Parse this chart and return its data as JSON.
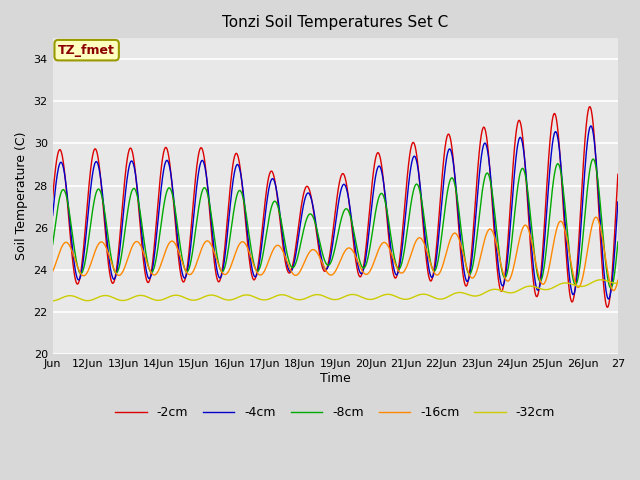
{
  "title": "Tonzi Soil Temperatures Set C",
  "xlabel": "Time",
  "ylabel": "Soil Temperature (C)",
  "ylim": [
    20,
    35
  ],
  "xlim": [
    0,
    384
  ],
  "annotation_text": "TZ_fmet",
  "annotation_color": "#8B0000",
  "annotation_bg": "#FFFFC0",
  "fig_bg_color": "#D8D8D8",
  "plot_bg": "#E8E8E8",
  "grid_color": "#FFFFFF",
  "series": [
    {
      "label": "-2cm",
      "color": "#DD0000"
    },
    {
      "label": "-4cm",
      "color": "#0000CC"
    },
    {
      "label": "-8cm",
      "color": "#00AA00"
    },
    {
      "label": "-16cm",
      "color": "#FF8800"
    },
    {
      "label": "-32cm",
      "color": "#CCCC00"
    }
  ],
  "xtick_labels": [
    "Jun",
    "12Jun",
    "13Jun",
    "14Jun",
    "15Jun",
    "16Jun",
    "17Jun",
    "18Jun",
    "19Jun",
    "20Jun",
    "21Jun",
    "22Jun",
    "23Jun",
    "24Jun",
    "25Jun",
    "26Jun",
    "27"
  ],
  "xtick_positions": [
    0,
    24,
    48,
    72,
    96,
    120,
    144,
    168,
    192,
    216,
    240,
    264,
    288,
    312,
    336,
    360,
    384
  ]
}
